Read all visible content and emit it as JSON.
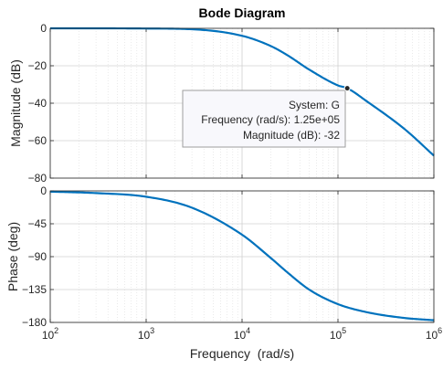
{
  "chart_data": {
    "type": "line",
    "title": "Bode Diagram",
    "xlabel": "Frequency  (rad/s)",
    "x_scale": "log",
    "xlim": [
      100,
      1000000
    ],
    "x_ticks": [
      100,
      1000,
      10000,
      100000,
      1000000
    ],
    "x_tick_labels": [
      {
        "base": "10",
        "exp": "2"
      },
      {
        "base": "10",
        "exp": "3"
      },
      {
        "base": "10",
        "exp": "4"
      },
      {
        "base": "10",
        "exp": "5"
      },
      {
        "base": "10",
        "exp": "6"
      }
    ],
    "grid": true,
    "line_color": "#0072BD",
    "panels": [
      {
        "ylabel": "Magnitude (dB)",
        "ylim": [
          -80,
          0
        ],
        "y_ticks": [
          0,
          -20,
          -40,
          -60,
          -80
        ],
        "y_tick_labels": [
          "0",
          "−20",
          "−40",
          "−60",
          "−80"
        ],
        "series": [
          {
            "x": [
              100,
              300,
              1000,
              3000,
              10000,
              20000,
              30000,
              50000,
              100000,
              125000,
              200000,
              500000,
              1000000
            ],
            "y": [
              0,
              0,
              -0.1,
              -0.5,
              -4,
              -9.5,
              -14.5,
              -22,
              -30.5,
              -32,
              -39,
              -54,
              -68
            ]
          }
        ]
      },
      {
        "ylabel": "Phase (deg)",
        "ylim": [
          -180,
          0
        ],
        "y_ticks": [
          0,
          -45,
          -90,
          -135,
          -180
        ],
        "y_tick_labels": [
          "0",
          "−45",
          "−90",
          "−135",
          "−180"
        ],
        "series": [
          {
            "x": [
              100,
              300,
              1000,
              3000,
              10000,
              20000,
              30000,
              50000,
              100000,
              200000,
              500000,
              1000000
            ],
            "y": [
              -1,
              -3,
              -8,
              -23,
              -60,
              -92,
              -112,
              -135,
              -155,
              -166,
              -174,
              -177
            ]
          }
        ]
      }
    ],
    "annotation": {
      "panel": 0,
      "x": 125000,
      "y": -32,
      "lines": [
        "System: G",
        "Frequency (rad/s): 1.25e+05",
        "Magnitude (dB): -32"
      ]
    }
  }
}
